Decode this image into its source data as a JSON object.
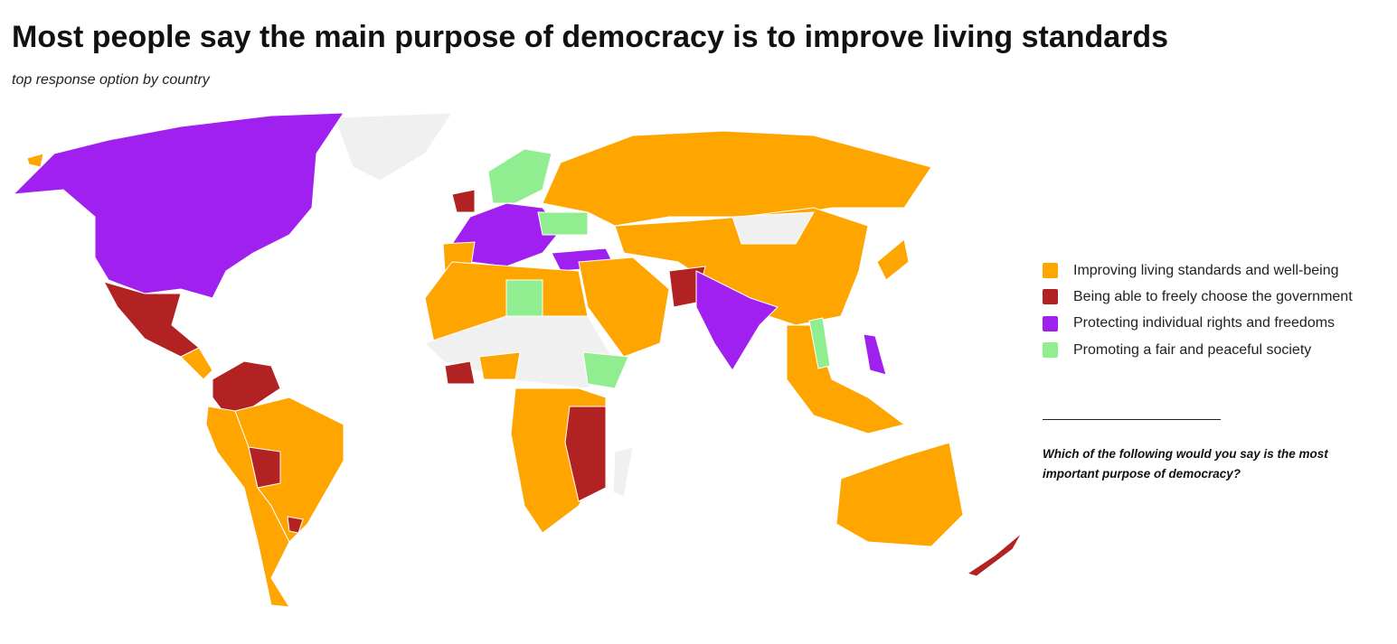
{
  "header": {
    "title": "Most people say the main purpose of democracy is to improve living standards",
    "subtitle": "top response option by country"
  },
  "legend": [
    {
      "label": "Improving living standards and well-being",
      "color": "#ffa500"
    },
    {
      "label": "Being able to freely choose the government",
      "color": "#b22222"
    },
    {
      "label": "Protecting individual rights and freedoms",
      "color": "#a020f0"
    },
    {
      "label": "Promoting a fair and peaceful society",
      "color": "#90ee90"
    }
  ],
  "question": "Which of the following would you say is the most important purpose of democracy?"
}
